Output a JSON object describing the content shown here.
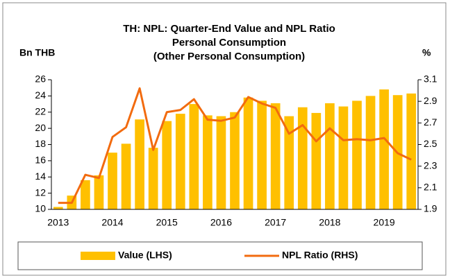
{
  "chart_data": {
    "type": "bar_line",
    "title": [
      "TH: NPL: Quarter-End Value and NPL Ratio",
      "Personal Consumption",
      "(Other Personal Consumption)"
    ],
    "ylabel": "Bn THB",
    "y2label": "%",
    "categories": [
      "2013",
      null,
      null,
      null,
      "2014",
      null,
      null,
      null,
      "2015",
      null,
      null,
      null,
      "2016",
      null,
      null,
      null,
      "2017",
      null,
      null,
      null,
      "2018",
      null,
      null,
      null,
      "2019",
      null,
      null
    ],
    "series": [
      {
        "name": "Value (LHS)",
        "color": "#ffc000",
        "type": "bar",
        "values": [
          10.3,
          11.7,
          13.6,
          14.2,
          17.0,
          18.1,
          21.1,
          17.6,
          20.9,
          21.8,
          23.0,
          21.6,
          21.5,
          22.0,
          23.8,
          23.4,
          23.1,
          21.5,
          22.6,
          21.9,
          23.1,
          22.7,
          23.4,
          24.0,
          24.8,
          24.1,
          24.3
        ]
      },
      {
        "name": "NPL Ratio (RHS)",
        "color": "#f26b0f",
        "type": "line",
        "axis": "y2",
        "values": [
          1.96,
          1.96,
          2.22,
          2.19,
          2.57,
          2.66,
          3.02,
          2.45,
          2.8,
          2.82,
          2.92,
          2.73,
          2.72,
          2.75,
          2.94,
          2.88,
          2.84,
          2.6,
          2.68,
          2.53,
          2.65,
          2.54,
          2.55,
          2.54,
          2.56,
          2.42,
          2.36
        ]
      }
    ],
    "ylim": [
      10,
      26
    ],
    "yticks": [
      10,
      12,
      14,
      16,
      18,
      20,
      22,
      24,
      26
    ],
    "y2lim": [
      1.9,
      3.1
    ],
    "y2ticks": [
      1.9,
      2.1,
      2.3,
      2.5,
      2.7,
      2.9,
      3.1
    ],
    "legend": "bottom"
  }
}
